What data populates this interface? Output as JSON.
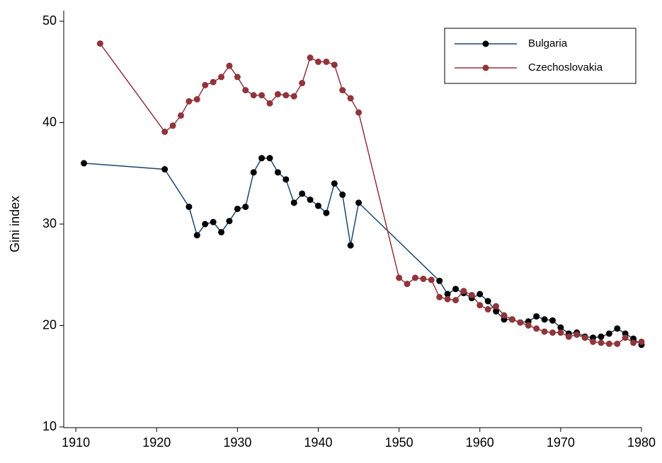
{
  "chart_data": {
    "type": "line",
    "y_label": "Gini index",
    "xlim": [
      1908.5,
      1980
    ],
    "xticks": [
      1910,
      1920,
      1930,
      1940,
      1950,
      1960,
      1970,
      1980
    ],
    "ylim": [
      10,
      50
    ],
    "yticks": [
      10,
      20,
      30,
      40,
      50
    ],
    "legend": "top-right",
    "series": [
      {
        "name": "Bulgaria",
        "color": "#1a476f",
        "marker_color": "#000000",
        "x": [
          1911,
          1921,
          1924,
          1925,
          1926,
          1927,
          1928,
          1929,
          1930,
          1931,
          1932,
          1933,
          1934,
          1935,
          1936,
          1937,
          1938,
          1939,
          1940,
          1941,
          1942,
          1943,
          1944,
          1945,
          1955,
          1956,
          1957,
          1958,
          1959,
          1960,
          1961,
          1962,
          1963,
          1964,
          1965,
          1966,
          1967,
          1968,
          1969,
          1970,
          1971,
          1972,
          1973,
          1974,
          1975,
          1976,
          1977,
          1978,
          1979,
          1980
        ],
        "values": [
          36.0,
          35.4,
          31.7,
          28.9,
          30.0,
          30.2,
          29.2,
          30.3,
          31.5,
          31.7,
          35.1,
          36.5,
          36.5,
          35.1,
          34.4,
          32.1,
          33.0,
          32.4,
          31.8,
          31.1,
          34.0,
          32.9,
          27.9,
          32.1,
          24.4,
          23.1,
          23.6,
          23.2,
          22.7,
          23.1,
          22.4,
          21.4,
          20.6,
          20.6,
          20.3,
          20.4,
          20.9,
          20.6,
          20.5,
          19.8,
          19.2,
          19.3,
          18.9,
          18.8,
          18.9,
          19.2,
          19.7,
          19.2,
          18.7,
          18.1
        ]
      },
      {
        "name": "Czechoslovakia",
        "color": "#90353b",
        "marker_color": "#90353b",
        "x": [
          1913,
          1921,
          1922,
          1923,
          1924,
          1925,
          1926,
          1927,
          1928,
          1929,
          1930,
          1931,
          1932,
          1933,
          1934,
          1935,
          1936,
          1937,
          1938,
          1939,
          1940,
          1941,
          1942,
          1943,
          1944,
          1945,
          1950,
          1951,
          1952,
          1953,
          1954,
          1955,
          1956,
          1957,
          1958,
          1959,
          1960,
          1961,
          1962,
          1963,
          1964,
          1965,
          1966,
          1967,
          1968,
          1969,
          1970,
          1971,
          1972,
          1973,
          1974,
          1975,
          1976,
          1977,
          1978,
          1979,
          1980
        ],
        "values": [
          47.8,
          39.1,
          39.7,
          40.7,
          42.1,
          42.3,
          43.7,
          44.0,
          44.5,
          45.6,
          44.5,
          43.2,
          42.7,
          42.7,
          41.9,
          42.8,
          42.7,
          42.6,
          43.9,
          46.4,
          46.0,
          46.0,
          45.7,
          43.2,
          42.4,
          41.0,
          24.7,
          24.1,
          24.7,
          24.6,
          24.5,
          22.8,
          22.6,
          22.5,
          23.4,
          23.0,
          22.0,
          21.6,
          21.9,
          21.0,
          20.6,
          20.3,
          20.0,
          19.7,
          19.4,
          19.3,
          19.3,
          18.9,
          19.1,
          18.8,
          18.4,
          18.3,
          18.2,
          18.2,
          18.8,
          18.3,
          18.4
        ]
      }
    ]
  }
}
